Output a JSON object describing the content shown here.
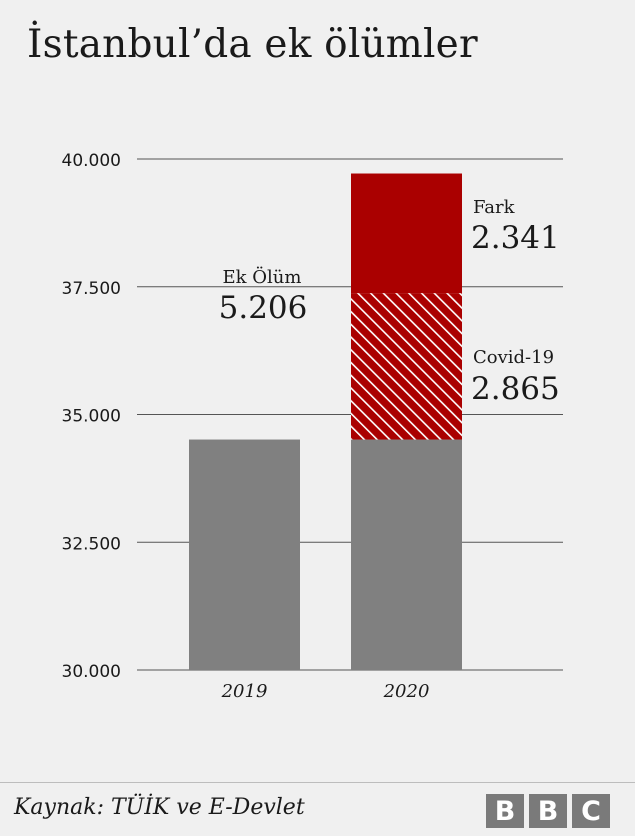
{
  "title": "İstanbul’da ek ölümler",
  "source": "Kaynak: TÜİK ve E-Devlet",
  "logo": [
    "B",
    "B",
    "C"
  ],
  "colors": {
    "bar": "#808080",
    "fark": "#aa0000",
    "hatch_bg": "#aa0000",
    "hatch_line": "#ffffff",
    "grid": "#555555"
  },
  "chart_data": {
    "type": "bar",
    "stacked": true,
    "categories": [
      "2019",
      "2020"
    ],
    "ylim": [
      30000,
      40000
    ],
    "yticks": [
      30000,
      32500,
      35000,
      37500,
      40000
    ],
    "ytick_labels": [
      "30.000",
      "32.500",
      "35.000",
      "37.500",
      "40.000"
    ],
    "grid": true,
    "base_values": [
      34510,
      34510
    ],
    "segments": [
      {
        "name": "Covid-19",
        "category": "2020",
        "value": 2865,
        "value_label": "2.865",
        "style": "hatch"
      },
      {
        "name": "Fark",
        "category": "2020",
        "value": 2341,
        "value_label": "2.341",
        "style": "solid"
      }
    ],
    "annotations": [
      {
        "label": "Ek Ölüm",
        "value_label": "5.206"
      }
    ]
  }
}
